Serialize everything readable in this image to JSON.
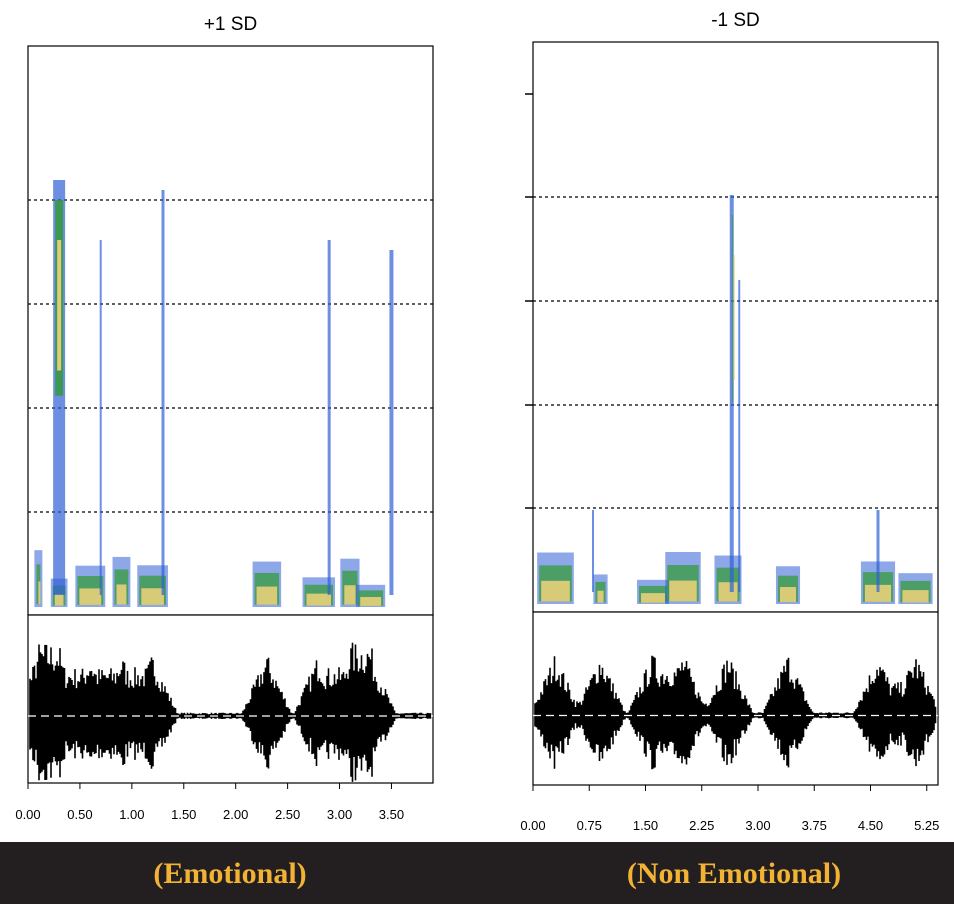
{
  "colors": {
    "spectrogram_low": "#2f5fd6",
    "spectrogram_mid": "#2f9a2f",
    "spectrogram_high": "#f0d27a",
    "waveform": "#000000",
    "banner_background": "#231f20",
    "banner_text": "#f2b233"
  },
  "chart_data": [
    {
      "type": "spectrogram",
      "title": "+1 SD",
      "x_ticks": [
        "0.00",
        "0.50",
        "1.00",
        "1.50",
        "2.00",
        "2.50",
        "3.00",
        "3.50"
      ],
      "xlim": [
        0,
        3.9
      ],
      "grid": "dotted horizontal lines in spectrogram",
      "panels": [
        "spectrogram",
        "waveform"
      ],
      "energy_bursts_x": [
        0.1,
        0.3,
        0.6,
        0.9,
        1.2,
        2.3,
        2.8,
        3.1,
        3.3
      ],
      "label": "(Emotional)"
    },
    {
      "type": "spectrogram",
      "title": "-1 SD",
      "x_ticks": [
        "0.00",
        "0.75",
        "1.50",
        "2.25",
        "3.00",
        "3.75",
        "4.50",
        "5.25"
      ],
      "xlim": [
        0,
        5.4
      ],
      "grid": "dotted horizontal lines in spectrogram",
      "panels": [
        "spectrogram",
        "waveform"
      ],
      "energy_bursts_x": [
        0.3,
        0.9,
        1.6,
        2.0,
        2.6,
        3.4,
        4.6,
        5.1
      ],
      "label": "(Non Emotional)"
    }
  ]
}
